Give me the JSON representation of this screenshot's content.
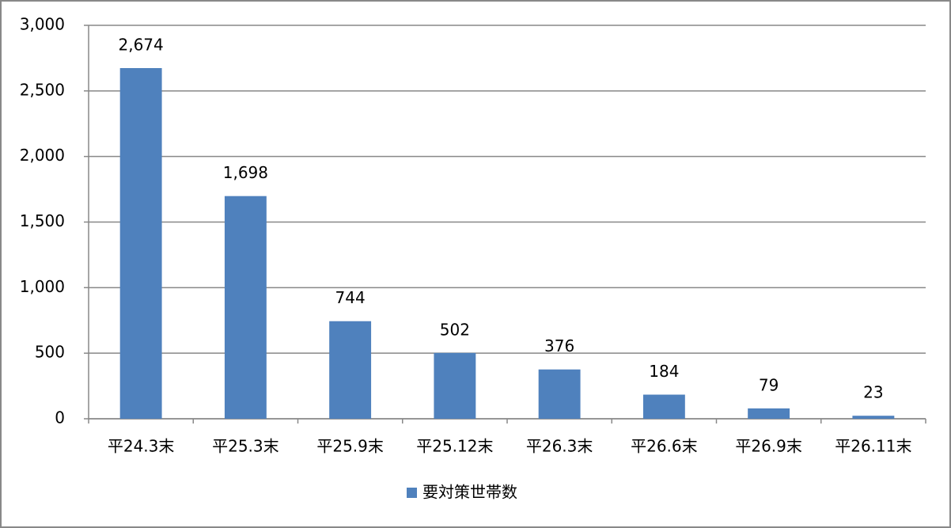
{
  "chart_data": {
    "type": "bar",
    "categories": [
      "平24.3末",
      "平25.3末",
      "平25.9末",
      "平25.12末",
      "平26.3末",
      "平26.6末",
      "平26.9末",
      "平26.11末"
    ],
    "series": [
      {
        "name": "要対策世帯数",
        "color": "#4f81bd",
        "values": [
          2674,
          1698,
          744,
          502,
          376,
          184,
          79,
          23
        ],
        "value_labels": [
          "2,674",
          "1,698",
          "744",
          "502",
          "376",
          "184",
          "79",
          "23"
        ]
      }
    ],
    "ylim": [
      0,
      3000
    ],
    "yticks": [
      0,
      500,
      {
        "value": 1000,
        "label": "1,000"
      },
      {
        "value": 1500,
        "label": "1,500"
      },
      {
        "value": 2000,
        "label": "2,000"
      },
      {
        "value": 2500,
        "label": "2,500"
      },
      {
        "value": 3000,
        "label": "3,000"
      }
    ],
    "grid": true,
    "legend": "bottom"
  }
}
